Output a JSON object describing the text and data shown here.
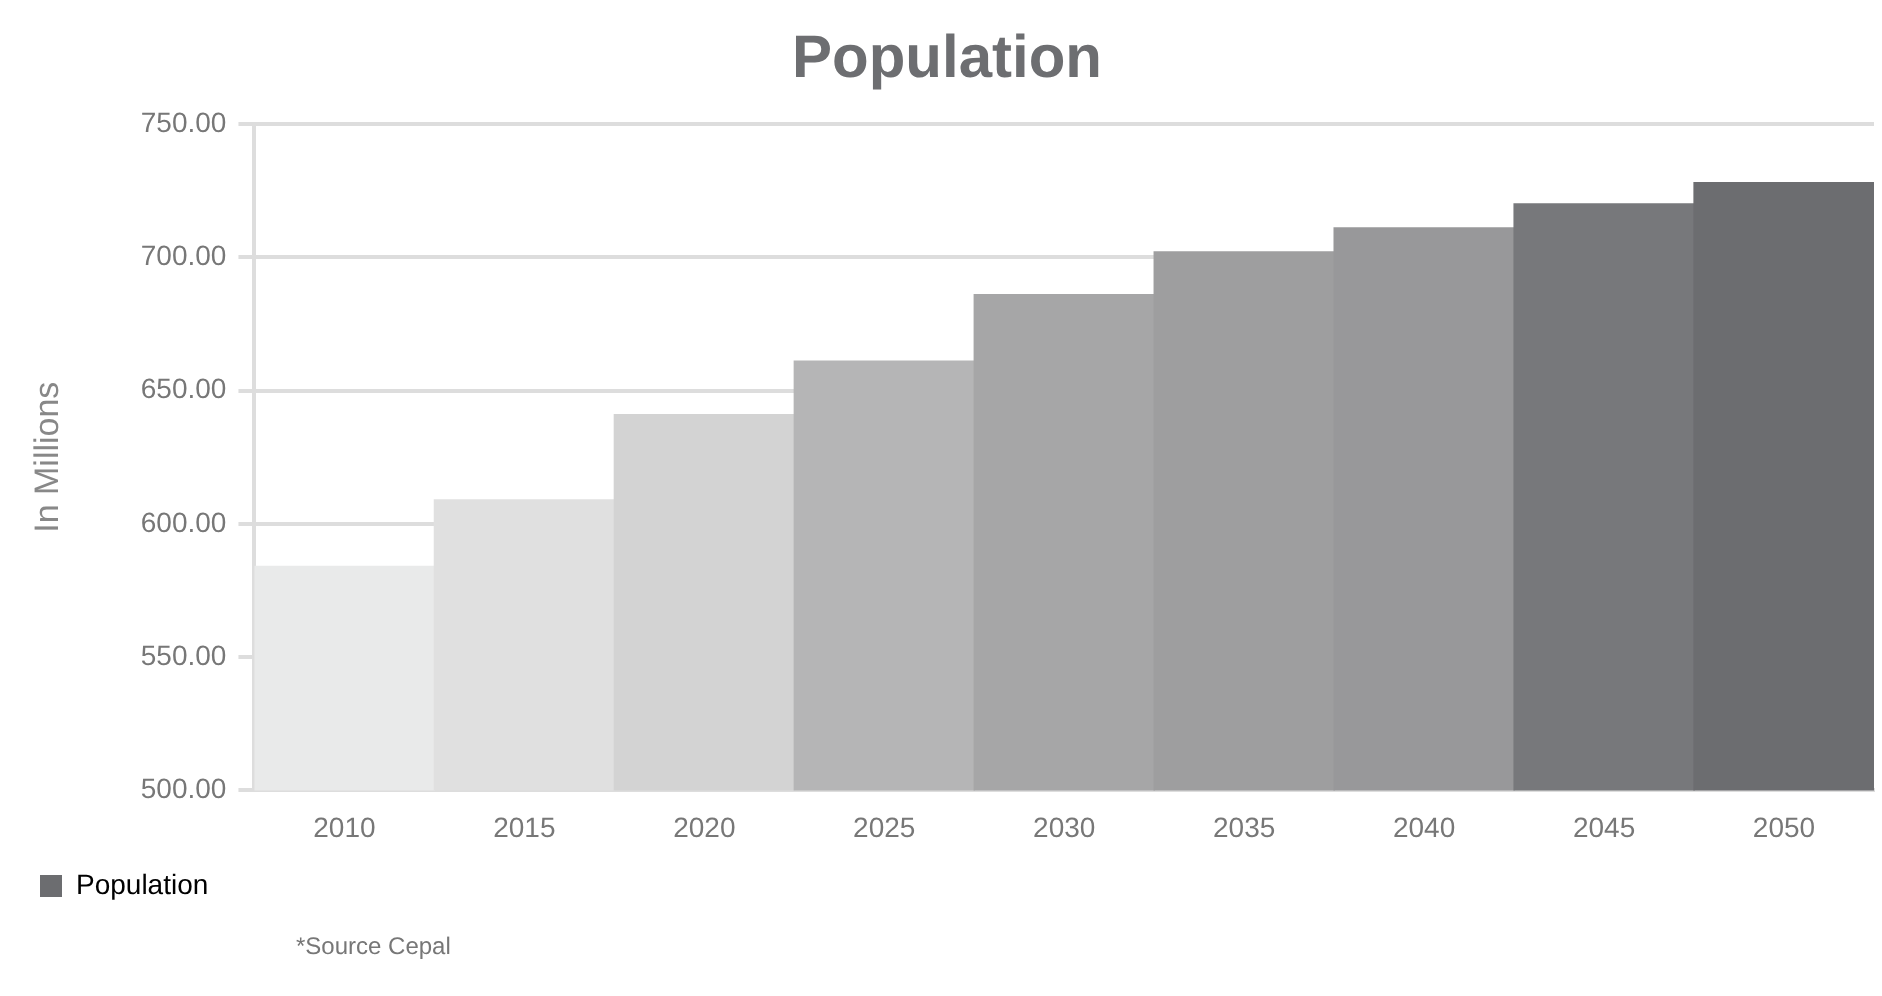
{
  "chart_data": {
    "type": "bar",
    "title": "Population",
    "ylabel": "In Millions",
    "categories": [
      "2010",
      "2015",
      "2020",
      "2025",
      "2030",
      "2035",
      "2040",
      "2045",
      "2050"
    ],
    "series": [
      {
        "name": "Population",
        "color": "#6c6d70",
        "colors": [
          "#e9eaea",
          "#e0e0e0",
          "#d3d3d3",
          "#b5b5b6",
          "#a6a6a7",
          "#9e9e9f",
          "#98989a",
          "#77787b",
          "#6c6d70"
        ],
        "values": [
          584,
          609,
          641,
          661,
          686,
          702,
          711,
          720,
          728
        ]
      }
    ],
    "ylim": [
      500,
      750
    ],
    "yticks": [
      {
        "value": 500,
        "label": "500.00"
      },
      {
        "value": 550,
        "label": "550.00"
      },
      {
        "value": 600,
        "label": "600.00"
      },
      {
        "value": 650,
        "label": "650.00"
      },
      {
        "value": 700,
        "label": "700.00"
      },
      {
        "value": 750,
        "label": "750.00"
      }
    ],
    "grid": "y",
    "legend": "bottom left",
    "annotations": [
      "*Source Cepal"
    ]
  }
}
